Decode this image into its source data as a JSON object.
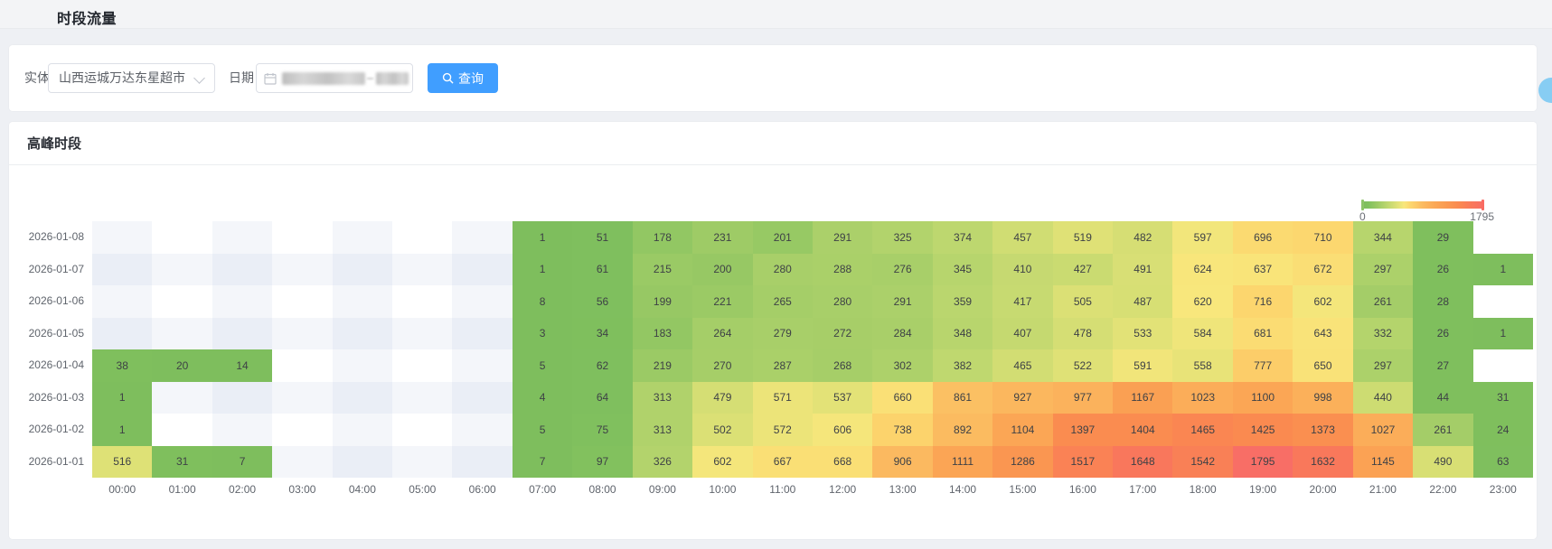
{
  "page": {
    "title": "时段流量"
  },
  "filter": {
    "entity_label": "实体",
    "entity_value": "山西运城万达东星超市",
    "date_label": "日期",
    "date_value_redacted": true,
    "search_button": "查询"
  },
  "panel": {
    "title": "高峰时段"
  },
  "icons": [
    "chevron-down-icon",
    "calendar-icon",
    "search-icon"
  ],
  "colors": {
    "accent": "#409eff",
    "page_bg": "#eef0f4",
    "card_bg": "#ffffff",
    "empty_cell_tints": [
      "#ffffff",
      "#f4f6fa",
      "#eaeef6"
    ],
    "scale_stops": [
      [
        0,
        "#7ebe5d"
      ],
      [
        0.05,
        "#80c05e"
      ],
      [
        0.13,
        "#9ecb66"
      ],
      [
        0.2,
        "#bad66e"
      ],
      [
        0.29,
        "#dfe176"
      ],
      [
        0.345,
        "#f8e77c"
      ],
      [
        0.4,
        "#fcd66e"
      ],
      [
        0.5,
        "#fbba60"
      ],
      [
        0.6,
        "#fba856"
      ],
      [
        0.7,
        "#fa9951"
      ],
      [
        0.8,
        "#fa8950"
      ],
      [
        0.9,
        "#f9795a"
      ],
      [
        1,
        "#f86e66"
      ]
    ]
  },
  "chart_data": {
    "type": "heatmap",
    "title": "高峰时段",
    "legend_position": "top-right",
    "min": 0,
    "max": 1795,
    "x_labels": [
      "00:00",
      "01:00",
      "02:00",
      "03:00",
      "04:00",
      "05:00",
      "06:00",
      "07:00",
      "08:00",
      "09:00",
      "10:00",
      "11:00",
      "12:00",
      "13:00",
      "14:00",
      "15:00",
      "16:00",
      "17:00",
      "18:00",
      "19:00",
      "20:00",
      "21:00",
      "22:00",
      "23:00"
    ],
    "y_labels": [
      "2026-01-08",
      "2026-01-07",
      "2026-01-06",
      "2026-01-05",
      "2026-01-04",
      "2026-01-03",
      "2026-01-02",
      "2026-01-01"
    ],
    "rows": [
      [
        null,
        null,
        null,
        null,
        null,
        null,
        null,
        1,
        51,
        178,
        231,
        201,
        291,
        325,
        374,
        457,
        519,
        482,
        597,
        696,
        710,
        344,
        29,
        null
      ],
      [
        null,
        null,
        null,
        null,
        null,
        null,
        null,
        1,
        61,
        215,
        200,
        280,
        288,
        276,
        345,
        410,
        427,
        491,
        624,
        637,
        672,
        297,
        26,
        1
      ],
      [
        null,
        null,
        null,
        null,
        null,
        null,
        null,
        8,
        56,
        199,
        221,
        265,
        280,
        291,
        359,
        417,
        505,
        487,
        620,
        716,
        602,
        261,
        28,
        null
      ],
      [
        null,
        null,
        null,
        null,
        null,
        null,
        null,
        3,
        34,
        183,
        264,
        279,
        272,
        284,
        348,
        407,
        478,
        533,
        584,
        681,
        643,
        332,
        26,
        1
      ],
      [
        38,
        20,
        14,
        null,
        null,
        null,
        null,
        5,
        62,
        219,
        270,
        287,
        268,
        302,
        382,
        465,
        522,
        591,
        558,
        777,
        650,
        297,
        27,
        null
      ],
      [
        1,
        null,
        null,
        null,
        null,
        null,
        null,
        4,
        64,
        313,
        479,
        571,
        537,
        660,
        861,
        927,
        977,
        1167,
        1023,
        1100,
        998,
        440,
        44,
        31
      ],
      [
        1,
        null,
        null,
        null,
        null,
        null,
        null,
        5,
        75,
        313,
        502,
        572,
        606,
        738,
        892,
        1104,
        1397,
        1404,
        1465,
        1425,
        1373,
        1027,
        261,
        24
      ],
      [
        516,
        31,
        7,
        null,
        null,
        null,
        null,
        7,
        97,
        326,
        602,
        667,
        668,
        906,
        1111,
        1286,
        1517,
        1648,
        1542,
        1795,
        1632,
        1145,
        490,
        63
      ]
    ]
  }
}
